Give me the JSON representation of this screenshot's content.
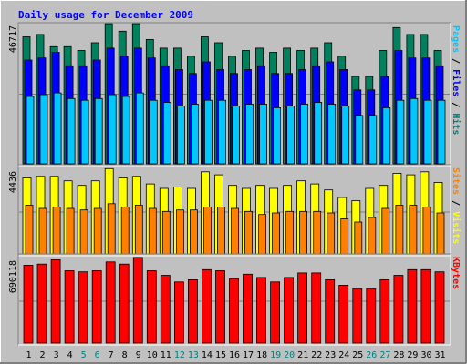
{
  "chart_data": {
    "type": "bar",
    "title": "Daily usage for December 2009",
    "categories": [
      "1",
      "2",
      "3",
      "4",
      "5",
      "6",
      "7",
      "8",
      "9",
      "10",
      "11",
      "12",
      "13",
      "14",
      "15",
      "16",
      "17",
      "18",
      "19",
      "20",
      "21",
      "22",
      "23",
      "24",
      "25",
      "26",
      "27",
      "28",
      "29",
      "30",
      "31"
    ],
    "weekend_days": [
      "5",
      "6",
      "12",
      "13",
      "19",
      "20",
      "26",
      "27"
    ],
    "panels": [
      {
        "id": "hits",
        "max_label": "46717",
        "ymax": 46717,
        "label_parts": [
          {
            "text": "Pages",
            "color": "#00c8ff"
          },
          {
            "text": " / ",
            "color": "#000000"
          },
          {
            "text": "Files",
            "color": "#0000ff"
          },
          {
            "text": " / ",
            "color": "#000000"
          },
          {
            "text": "Hits",
            "color": "#008080"
          }
        ],
        "series": [
          {
            "name": "Hits",
            "color": "#00805c",
            "values": [
              42600,
              43400,
              39300,
              39300,
              38000,
              40600,
              47000,
              44500,
              47000,
              41700,
              38800,
              38800,
              36100,
              42600,
              40600,
              36100,
              38000,
              38800,
              37400,
              38800,
              38000,
              38800,
              40600,
              36100,
              29300,
              29300,
              38000,
              45700,
              43400,
              43400,
              38000
            ]
          },
          {
            "name": "Files",
            "color": "#0000ff",
            "values": [
              34800,
              35500,
              37400,
              32900,
              32900,
              34800,
              38800,
              36100,
              38800,
              35500,
              32900,
              31600,
              30300,
              34200,
              31600,
              30300,
              31600,
              32900,
              30300,
              30300,
              31600,
              32900,
              34200,
              31600,
              24800,
              24800,
              29300,
              38000,
              35500,
              35500,
              32900
            ]
          },
          {
            "name": "Pages",
            "color": "#00c8ff",
            "values": [
              22600,
              23200,
              23800,
              21900,
              21300,
              21900,
              23200,
              22600,
              23800,
              21300,
              20600,
              19400,
              20000,
              21300,
              21300,
              19400,
              20000,
              20000,
              18800,
              19400,
              20000,
              20600,
              20000,
              19400,
              16200,
              16200,
              18800,
              21300,
              21900,
              21300,
              21300
            ]
          }
        ]
      },
      {
        "id": "visits",
        "max_label": "4436",
        "ymax": 4436,
        "label_parts": [
          {
            "text": "Sites",
            "color": "#ff8000"
          },
          {
            "text": " / ",
            "color": "#000000"
          },
          {
            "text": "Visits",
            "color": "#ffff00"
          }
        ],
        "series": [
          {
            "name": "Visits",
            "color": "#ffff00",
            "values": [
              4030,
              4110,
              4110,
              3870,
              3630,
              3870,
              4520,
              4030,
              4110,
              3710,
              3470,
              3550,
              3470,
              4350,
              4190,
              3630,
              3470,
              3630,
              3470,
              3630,
              3870,
              3710,
              3390,
              2990,
              2820,
              3470,
              3630,
              4270,
              4190,
              4350,
              3790
            ]
          },
          {
            "name": "Sites",
            "color": "#ff8000",
            "values": [
              2580,
              2410,
              2490,
              2410,
              2330,
              2410,
              2660,
              2490,
              2580,
              2410,
              2250,
              2330,
              2330,
              2490,
              2490,
              2410,
              2250,
              2090,
              2170,
              2250,
              2250,
              2250,
              2170,
              1860,
              1690,
              1930,
              2410,
              2580,
              2580,
              2490,
              2170
            ]
          }
        ]
      },
      {
        "id": "kbytes",
        "max_label": "690118",
        "ymax": 690118,
        "label_parts": [
          {
            "text": "KBytes",
            "color": "#ff0000"
          }
        ],
        "series": [
          {
            "name": "KBytes",
            "color": "#ff0000",
            "values": [
              642000,
              651000,
              687000,
              596000,
              587000,
              596000,
              669000,
              651000,
              706000,
              596000,
              559000,
              504000,
              522000,
              605000,
              596000,
              532000,
              568000,
              541000,
              504000,
              541000,
              578000,
              578000,
              522000,
              477000,
              449000,
              449000,
              522000,
              559000,
              605000,
              605000,
              587000
            ]
          }
        ]
      }
    ]
  }
}
